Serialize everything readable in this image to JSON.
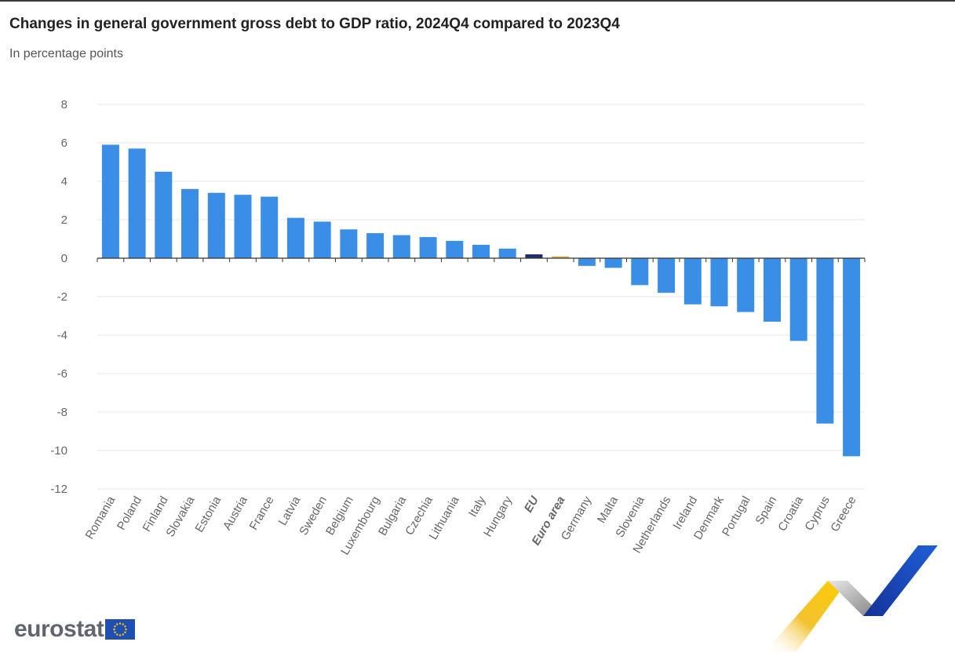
{
  "title": "Changes in general government gross debt to GDP ratio, 2024Q4 compared to 2023Q4",
  "subtitle": "In percentage points",
  "logo": {
    "text": "eurostat",
    "icon": "eu-flag-icon"
  },
  "colors": {
    "bar": "#3a8ee6",
    "eu": "#1b2b6b",
    "euro_area": "#d7b256",
    "grid": "#e3e7ee",
    "axis_text": "#666666"
  },
  "chart_data": {
    "type": "bar",
    "title": "Changes in general government gross debt to GDP ratio, 2024Q4 compared to 2023Q4",
    "subtitle": "In percentage points",
    "categories": [
      "Romania",
      "Poland",
      "Finland",
      "Slovakia",
      "Estonia",
      "Austria",
      "France",
      "Latvia",
      "Sweden",
      "Belgium",
      "Luxembourg",
      "Bulgaria",
      "Czechia",
      "Lithuania",
      "Italy",
      "Hungary",
      "EU",
      "Euro area",
      "Germany",
      "Malta",
      "Slovenia",
      "Netherlands",
      "Ireland",
      "Denmark",
      "Portugal",
      "Spain",
      "Croatia",
      "Cyprus",
      "Greece"
    ],
    "values": [
      5.9,
      5.7,
      4.5,
      3.6,
      3.4,
      3.3,
      3.2,
      2.1,
      1.9,
      1.5,
      1.3,
      1.2,
      1.1,
      0.9,
      0.7,
      0.5,
      0.2,
      0.1,
      -0.4,
      -0.5,
      -1.4,
      -1.8,
      -2.4,
      -2.5,
      -2.8,
      -3.3,
      -4.3,
      -8.6,
      -10.3
    ],
    "highlight": {
      "EU": "#1b2b6b",
      "Euro area": "#d7b256"
    },
    "bold_categories": [
      "EU",
      "Euro area"
    ],
    "ylim": [
      -12,
      8
    ],
    "yticks": [
      8,
      6,
      4,
      2,
      0,
      -2,
      -4,
      -6,
      -8,
      -10,
      -12
    ],
    "grid": true,
    "legend": "none"
  }
}
